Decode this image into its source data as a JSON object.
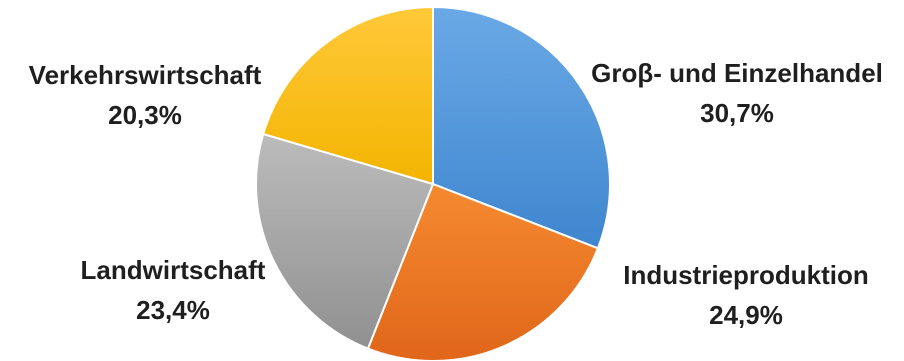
{
  "chart_data": {
    "type": "pie",
    "title": "",
    "start_angle_deg": 0,
    "direction": "clockwise",
    "slices": [
      {
        "label": "Groβ- und Einzelhandel",
        "value": 30.7,
        "value_text": "30,7%",
        "color": "#4f93d6"
      },
      {
        "label": "Industrieproduktion",
        "value": 24.9,
        "value_text": "24,9%",
        "color": "#ee7422"
      },
      {
        "label": "Landwirtschaft",
        "value": 23.4,
        "value_text": "23,4%",
        "color": "#a5a5a5"
      },
      {
        "label": "Verkehrswirtschaft",
        "value": 20.3,
        "value_text": "20,3%",
        "color": "#ffc000"
      }
    ]
  }
}
